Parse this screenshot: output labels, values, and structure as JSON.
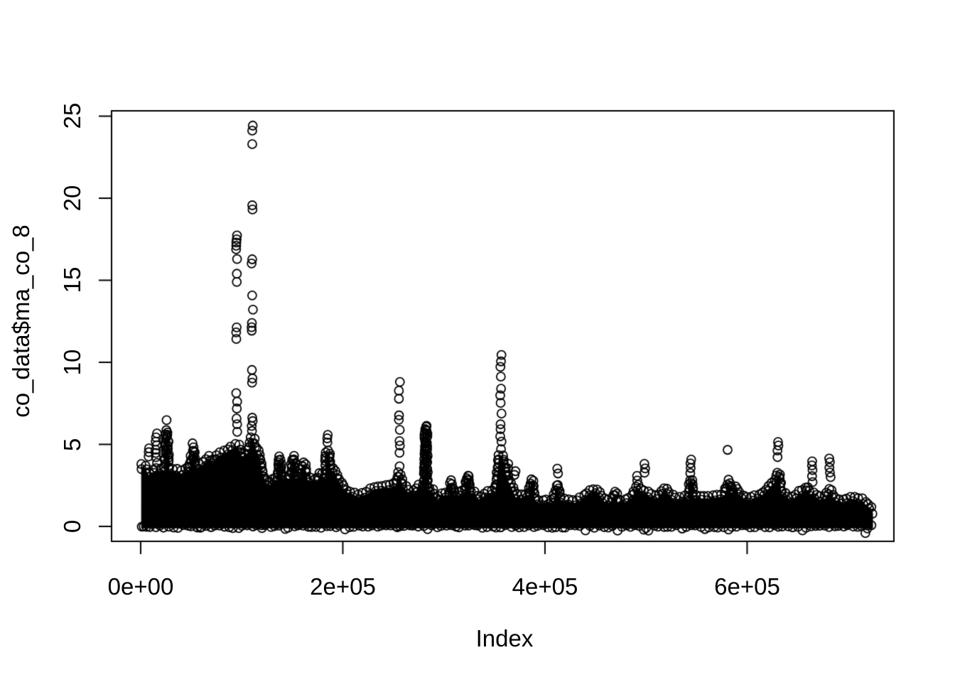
{
  "chart_data": {
    "type": "scatter",
    "title": "",
    "xlabel": "Index",
    "ylabel": "co_data$ma_co_8",
    "marker": {
      "shape": "open-circle",
      "radius_px": 6,
      "stroke_px": 1.8,
      "color": "#000000"
    },
    "background": "#ffffff",
    "grid": false,
    "legend": null,
    "xlim": [
      -28800,
      745200
    ],
    "ylim": [
      -0.905,
      25.32
    ],
    "xticks": {
      "values": [
        0,
        200000,
        400000,
        600000
      ],
      "labels": [
        "0e+00",
        "2e+05",
        "4e+05",
        "6e+05"
      ]
    },
    "yticks": {
      "values": [
        0,
        5,
        10,
        15,
        20,
        25
      ],
      "labels": [
        "0",
        "5",
        "10",
        "15",
        "20",
        "25"
      ]
    },
    "representation": "dense_band_envelope_plus_outliers",
    "band_envelope": [
      [
        500,
        3.8
      ],
      [
        4000,
        3.75
      ],
      [
        8000,
        3.3
      ],
      [
        13000,
        3.5
      ],
      [
        15500,
        3.6
      ],
      [
        19000,
        3.5
      ],
      [
        24000,
        3.6
      ],
      [
        25300,
        5.9
      ],
      [
        26700,
        5.9
      ],
      [
        28000,
        3.6
      ],
      [
        33000,
        3.5
      ],
      [
        40000,
        3.4
      ],
      [
        48000,
        3.6
      ],
      [
        51000,
        4.6
      ],
      [
        53000,
        4.6
      ],
      [
        54500,
        3.7
      ],
      [
        61000,
        3.9
      ],
      [
        68000,
        4.3
      ],
      [
        71000,
        4.0
      ],
      [
        75000,
        4.35
      ],
      [
        82000,
        4.6
      ],
      [
        89000,
        4.85
      ],
      [
        93500,
        5.0
      ],
      [
        96500,
        5.0
      ],
      [
        100000,
        4.4
      ],
      [
        106000,
        4.6
      ],
      [
        109000,
        5.4
      ],
      [
        112000,
        5.4
      ],
      [
        114000,
        4.9
      ],
      [
        117500,
        4.4
      ],
      [
        121000,
        3.3
      ],
      [
        124500,
        2.8
      ],
      [
        128000,
        2.7
      ],
      [
        132000,
        3.0
      ],
      [
        135500,
        2.9
      ],
      [
        136500,
        4.25
      ],
      [
        138500,
        4.25
      ],
      [
        139500,
        3.0
      ],
      [
        143000,
        3.0
      ],
      [
        148000,
        3.1
      ],
      [
        150200,
        4.3
      ],
      [
        152000,
        4.3
      ],
      [
        153500,
        3.1
      ],
      [
        158000,
        3.2
      ],
      [
        160500,
        3.95
      ],
      [
        162500,
        3.95
      ],
      [
        164000,
        3.0
      ],
      [
        169000,
        2.95
      ],
      [
        174000,
        2.9
      ],
      [
        178000,
        3.3
      ],
      [
        182500,
        3.1
      ],
      [
        183500,
        4.65
      ],
      [
        186500,
        4.65
      ],
      [
        188000,
        3.6
      ],
      [
        192000,
        3.5
      ],
      [
        196000,
        2.9
      ],
      [
        203000,
        2.3
      ],
      [
        210000,
        2.1
      ],
      [
        217000,
        1.95
      ],
      [
        224000,
        2.15
      ],
      [
        231000,
        2.45
      ],
      [
        239000,
        2.5
      ],
      [
        247000,
        2.5
      ],
      [
        252000,
        2.65
      ],
      [
        255000,
        3.3
      ],
      [
        257000,
        3.3
      ],
      [
        259000,
        2.65
      ],
      [
        264000,
        2.3
      ],
      [
        270000,
        2.2
      ],
      [
        276000,
        2.6
      ],
      [
        280500,
        2.45
      ],
      [
        281300,
        6.15
      ],
      [
        282900,
        6.15
      ],
      [
        283700,
        2.4
      ],
      [
        288000,
        2.35
      ],
      [
        293000,
        1.7
      ],
      [
        298000,
        2.05
      ],
      [
        306000,
        2.1
      ],
      [
        306900,
        2.8
      ],
      [
        308100,
        2.8
      ],
      [
        309000,
        2.1
      ],
      [
        314000,
        2.05
      ],
      [
        319000,
        2.3
      ],
      [
        321500,
        2.2
      ],
      [
        322500,
        3.1
      ],
      [
        324500,
        3.1
      ],
      [
        325500,
        2.2
      ],
      [
        330000,
        2.15
      ],
      [
        335000,
        1.75
      ],
      [
        340000,
        2.05
      ],
      [
        346000,
        2.2
      ],
      [
        351000,
        2.3
      ],
      [
        354500,
        4.35
      ],
      [
        358500,
        4.35
      ],
      [
        361000,
        3.5
      ],
      [
        364000,
        2.9
      ],
      [
        368000,
        2.4
      ],
      [
        371000,
        1.95
      ],
      [
        376000,
        1.9
      ],
      [
        384000,
        2.1
      ],
      [
        386700,
        2.9
      ],
      [
        388500,
        2.9
      ],
      [
        390000,
        1.8
      ],
      [
        395000,
        1.55
      ],
      [
        402000,
        1.65
      ],
      [
        408000,
        1.6
      ],
      [
        411500,
        2.6
      ],
      [
        413500,
        2.6
      ],
      [
        415000,
        1.75
      ],
      [
        423000,
        1.7
      ],
      [
        430000,
        1.6
      ],
      [
        437000,
        1.8
      ],
      [
        444000,
        2.25
      ],
      [
        451000,
        2.35
      ],
      [
        457000,
        1.8
      ],
      [
        461000,
        1.55
      ],
      [
        466000,
        1.7
      ],
      [
        468500,
        2.15
      ],
      [
        470500,
        2.15
      ],
      [
        472000,
        1.6
      ],
      [
        479000,
        1.65
      ],
      [
        486000,
        1.9
      ],
      [
        490000,
        2.5
      ],
      [
        493000,
        2.5
      ],
      [
        496000,
        2.2
      ],
      [
        500000,
        2.2
      ],
      [
        505000,
        1.95
      ],
      [
        511000,
        1.85
      ],
      [
        518000,
        2.4
      ],
      [
        524000,
        2.0
      ],
      [
        529000,
        1.75
      ],
      [
        535000,
        1.85
      ],
      [
        542000,
        1.8
      ],
      [
        543500,
        2.9
      ],
      [
        545500,
        2.9
      ],
      [
        547000,
        1.9
      ],
      [
        553000,
        1.9
      ],
      [
        560000,
        1.85
      ],
      [
        566000,
        1.95
      ],
      [
        572000,
        1.9
      ],
      [
        578000,
        2.1
      ],
      [
        580500,
        2.8
      ],
      [
        582500,
        2.8
      ],
      [
        584000,
        2.2
      ],
      [
        588500,
        2.45
      ],
      [
        592000,
        2.1
      ],
      [
        597000,
        1.85
      ],
      [
        602000,
        1.75
      ],
      [
        607000,
        1.9
      ],
      [
        613000,
        2.0
      ],
      [
        618000,
        2.25
      ],
      [
        623000,
        2.6
      ],
      [
        628000,
        2.9
      ],
      [
        630500,
        3.3
      ],
      [
        632500,
        3.3
      ],
      [
        634000,
        2.1
      ],
      [
        638000,
        2.0
      ],
      [
        642000,
        1.75
      ],
      [
        647000,
        1.9
      ],
      [
        651000,
        2.15
      ],
      [
        655000,
        2.2
      ],
      [
        658000,
        2.5
      ],
      [
        663000,
        2.1
      ],
      [
        666000,
        2.1
      ],
      [
        669000,
        1.85
      ],
      [
        673000,
        1.8
      ],
      [
        678000,
        1.9
      ],
      [
        681000,
        2.3
      ],
      [
        683000,
        2.3
      ],
      [
        686000,
        1.8
      ],
      [
        691000,
        1.7
      ],
      [
        695000,
        1.6
      ],
      [
        700000,
        1.8
      ],
      [
        705000,
        1.85
      ],
      [
        709000,
        1.7
      ],
      [
        714000,
        1.75
      ],
      [
        718000,
        1.45
      ],
      [
        722000,
        1.3
      ],
      [
        724500,
        1.0
      ]
    ],
    "outlier_columns": [
      {
        "x": 8000,
        "values": [
          4.75,
          4.5,
          4.25
        ]
      },
      {
        "x": 15500,
        "values": [
          5.7,
          5.45,
          5.2,
          4.95,
          4.7,
          4.45,
          4.2,
          3.9
        ]
      },
      {
        "x": 26000,
        "values": [
          6.45
        ]
      },
      {
        "x": 52000,
        "values": [
          5.1,
          4.85,
          4.6,
          4.35,
          4.1
        ]
      },
      {
        "x": 94900,
        "values": [
          17.7,
          17.5,
          17.3,
          17.1,
          16.9,
          16.3,
          15.4,
          14.9,
          12.1,
          11.8,
          11.4,
          8.1,
          7.6,
          7.2,
          6.6,
          6.2,
          5.8
        ]
      },
      {
        "x": 110400,
        "values": [
          24.4,
          24.1,
          23.3,
          19.55,
          19.3,
          16.25,
          16.0,
          14.05,
          13.2,
          12.4,
          12.15,
          11.9,
          9.55,
          9.05,
          8.75,
          6.6,
          6.4,
          6.1,
          5.8
        ]
      },
      {
        "x": 185000,
        "values": [
          5.6,
          5.35,
          5.1
        ]
      },
      {
        "x": 255900,
        "values": [
          8.8,
          8.25,
          7.8,
          6.8,
          6.5,
          5.9,
          5.2,
          4.9,
          4.5,
          3.7
        ]
      },
      {
        "x": 281900,
        "values": [
          6.1,
          5.5,
          5.05,
          4.55,
          4.2,
          3.7,
          3.3
        ]
      },
      {
        "x": 323500,
        "values": [
          3.1,
          2.85
        ]
      },
      {
        "x": 356400,
        "values": [
          10.45,
          10.05,
          9.7,
          9.1,
          8.4,
          8.0,
          7.5,
          6.85,
          6.2,
          5.95,
          5.5,
          5.2,
          4.7
        ]
      },
      {
        "x": 363500,
        "values": [
          3.8,
          3.5,
          3.15
        ]
      },
      {
        "x": 370500,
        "values": [
          3.4,
          3.15
        ]
      },
      {
        "x": 412700,
        "values": [
          3.5,
          3.2
        ]
      },
      {
        "x": 491000,
        "values": [
          3.05,
          2.8
        ]
      },
      {
        "x": 498400,
        "values": [
          3.85,
          3.55,
          3.25
        ]
      },
      {
        "x": 544100,
        "values": [
          4.1,
          3.85,
          3.55,
          3.25
        ]
      },
      {
        "x": 580000,
        "values": [
          4.7
        ]
      },
      {
        "x": 630600,
        "values": [
          5.15,
          4.9,
          4.6,
          4.25
        ]
      },
      {
        "x": 664300,
        "values": [
          4.0,
          3.7,
          3.4,
          3.05,
          2.7
        ]
      },
      {
        "x": 681900,
        "values": [
          4.15,
          3.9,
          3.6,
          3.3,
          3.0
        ]
      }
    ],
    "low_outliers": [
      [
        3000,
        0.0
      ],
      [
        60000,
        -0.05
      ],
      [
        120000,
        -0.1
      ],
      [
        254000,
        -0.05
      ],
      [
        500000,
        -0.1
      ],
      [
        717000,
        -0.4
      ],
      [
        719000,
        -0.12
      ]
    ]
  }
}
